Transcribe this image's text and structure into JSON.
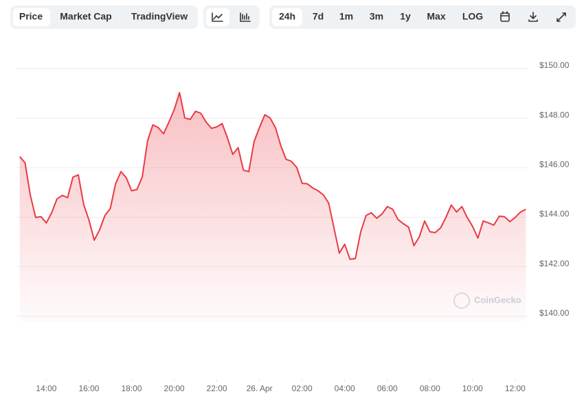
{
  "tabs": [
    "Price",
    "Market Cap",
    "TradingView"
  ],
  "ranges": [
    "24h",
    "7d",
    "1m",
    "3m",
    "1y",
    "Max",
    "LOG"
  ],
  "chart_data": {
    "type": "area",
    "watermark": "CoinGecko",
    "color": "#ea3943",
    "x": [
      12.75,
      13,
      13.25,
      13.5,
      13.75,
      14,
      14.25,
      14.5,
      14.75,
      15,
      15.25,
      15.5,
      15.75,
      16,
      16.25,
      16.5,
      16.75,
      17,
      17.25,
      17.5,
      17.75,
      18,
      18.25,
      18.5,
      18.75,
      19,
      19.25,
      19.5,
      19.75,
      20,
      20.25,
      20.5,
      20.75,
      21,
      21.25,
      21.5,
      21.75,
      22,
      22.25,
      22.5,
      22.75,
      23,
      23.25,
      23.5,
      23.75,
      24,
      24.25,
      24.5,
      24.75,
      25,
      25.25,
      25.5,
      25.75,
      26,
      26.25,
      26.5,
      26.75,
      27,
      27.25,
      27.5,
      27.75,
      28,
      28.25,
      28.5,
      28.75,
      29,
      29.25,
      29.5,
      29.75,
      30,
      30.25,
      30.5,
      30.75,
      31,
      31.25,
      31.5,
      31.75,
      32,
      32.25,
      32.5,
      32.75,
      33,
      33.25,
      33.5,
      33.75,
      34,
      34.25,
      34.5,
      34.75,
      35,
      35.25,
      35.5,
      35.75,
      36,
      36.25,
      36.5
    ],
    "values": [
      146.45,
      146.2,
      144.88,
      143.99,
      144.02,
      143.77,
      144.18,
      144.74,
      144.88,
      144.79,
      145.62,
      145.71,
      144.52,
      143.88,
      143.07,
      143.49,
      144.07,
      144.35,
      145.35,
      145.84,
      145.6,
      145.07,
      145.12,
      145.62,
      147.09,
      147.73,
      147.62,
      147.37,
      147.84,
      148.34,
      149.03,
      148.01,
      147.95,
      148.28,
      148.2,
      147.84,
      147.59,
      147.65,
      147.78,
      147.2,
      146.54,
      146.81,
      145.9,
      145.84,
      147.06,
      147.62,
      148.14,
      148.01,
      147.62,
      146.9,
      146.34,
      146.26,
      146.01,
      145.37,
      145.35,
      145.18,
      145.07,
      144.9,
      144.57,
      143.55,
      142.55,
      142.91,
      142.3,
      142.33,
      143.41,
      144.07,
      144.18,
      143.96,
      144.13,
      144.43,
      144.32,
      143.91,
      143.74,
      143.6,
      142.85,
      143.21,
      143.85,
      143.41,
      143.38,
      143.57,
      143.99,
      144.49,
      144.21,
      144.43,
      143.99,
      143.63,
      143.16,
      143.85,
      143.77,
      143.68,
      144.04,
      144.02,
      143.82,
      143.99,
      144.21,
      144.32
    ],
    "xlim": [
      12.6,
      36.65
    ],
    "xticks": [
      {
        "value": 14,
        "label": "14:00"
      },
      {
        "value": 16,
        "label": "16:00"
      },
      {
        "value": 18,
        "label": "18:00"
      },
      {
        "value": 20,
        "label": "20:00"
      },
      {
        "value": 22,
        "label": "22:00"
      },
      {
        "value": 24,
        "label": "26. Apr"
      },
      {
        "value": 26,
        "label": "02:00"
      },
      {
        "value": 28,
        "label": "04:00"
      },
      {
        "value": 30,
        "label": "06:00"
      },
      {
        "value": 32,
        "label": "08:00"
      },
      {
        "value": 34,
        "label": "10:00"
      },
      {
        "value": 36,
        "label": "12:00"
      }
    ],
    "ylim": [
      139.8,
      150.5
    ],
    "yticks": [
      {
        "value": 140,
        "label": "$140.00"
      },
      {
        "value": 142,
        "label": "$142.00"
      },
      {
        "value": 144,
        "label": "$144.00"
      },
      {
        "value": 146,
        "label": "$146.00"
      },
      {
        "value": 148,
        "label": "$148.00"
      },
      {
        "value": 150,
        "label": "$150.00"
      }
    ],
    "grid": true
  }
}
